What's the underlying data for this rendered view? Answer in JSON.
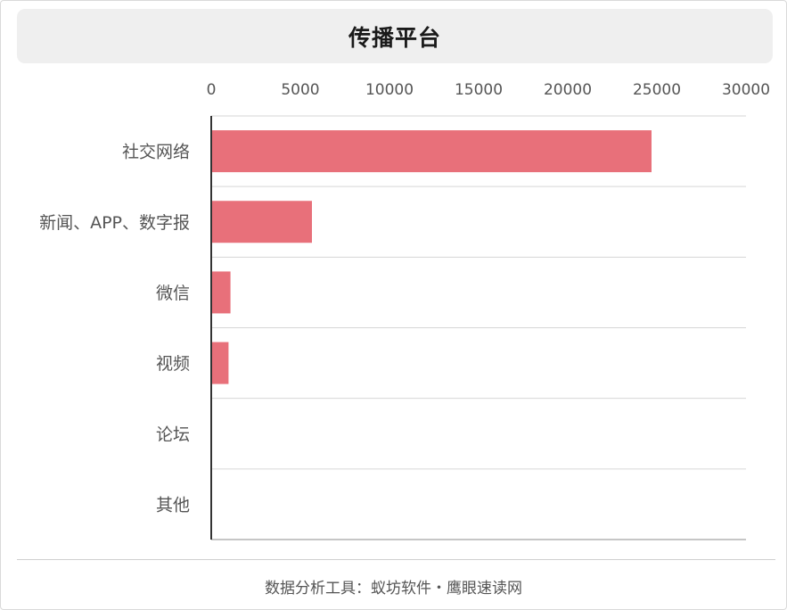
{
  "header": {
    "title": "传播平台"
  },
  "chart_data": {
    "type": "bar",
    "orientation": "horizontal",
    "categories": [
      "社交网络",
      "新闻、APP、数字报",
      "微信",
      "视频",
      "论坛",
      "其他"
    ],
    "values": [
      24700,
      5650,
      1080,
      970,
      0,
      0
    ],
    "xlim": [
      0,
      30000
    ],
    "xticks": [
      0,
      5000,
      10000,
      15000,
      20000,
      25000,
      30000
    ],
    "x_axis_position": "top",
    "grid": true,
    "bar_color": "#e8707a"
  },
  "footer": {
    "source": "数据分析工具：蚁坊软件・鹰眼速读网"
  }
}
